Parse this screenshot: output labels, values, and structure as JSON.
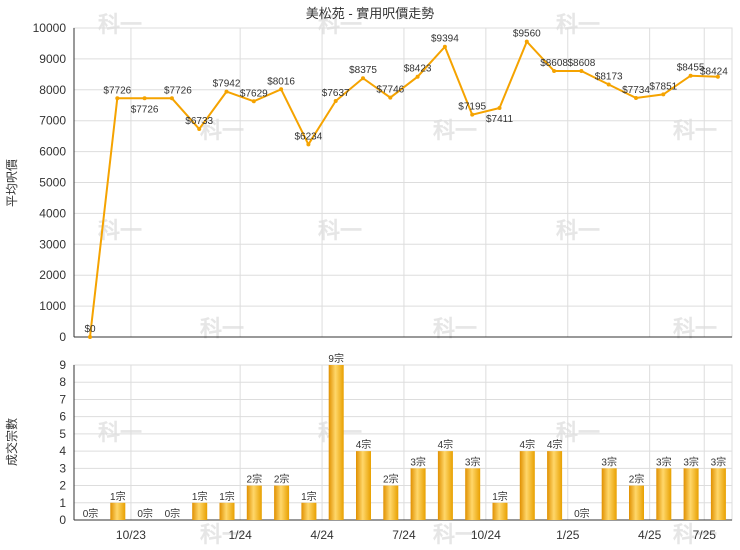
{
  "chart_data": [
    {
      "type": "line",
      "title": "美松苑 - 實用呎價走勢",
      "ylabel": "平均呎價",
      "ylim": [
        0,
        10000
      ],
      "yticks": [
        0,
        1000,
        2000,
        3000,
        4000,
        5000,
        6000,
        7000,
        8000,
        9000,
        10000
      ],
      "x_tick_labels": [
        "10/23",
        "1/24",
        "4/24",
        "7/24",
        "10/24",
        "1/25",
        "4/25",
        "7/25"
      ],
      "grid": true,
      "color": "#f5a300",
      "values": [
        0,
        7726,
        7726,
        7726,
        6733,
        7942,
        7629,
        8016,
        6234,
        7637,
        8375,
        7746,
        8423,
        9394,
        7195,
        7411,
        9560,
        8608,
        8608,
        8173,
        7734,
        7851,
        8455,
        8424
      ],
      "labels": [
        "$0",
        "$7726",
        "$7726",
        "$7726",
        "$6733",
        "$7942",
        "$7629",
        "$8016",
        "$6234",
        "$7637",
        "$8375",
        "$7746",
        "$8423",
        "$9394",
        "$7195",
        "$7411",
        "$9560",
        "$8608",
        "$8608",
        "$8173",
        "$7734",
        "$7851",
        "$8455",
        "$8424"
      ]
    },
    {
      "type": "bar",
      "ylabel": "成交宗數",
      "ylim": [
        0,
        9
      ],
      "yticks": [
        0,
        1,
        2,
        3,
        4,
        5,
        6,
        7,
        8,
        9
      ],
      "x_tick_labels": [
        "10/23",
        "1/24",
        "4/24",
        "7/24",
        "10/24",
        "1/25",
        "4/25",
        "7/25"
      ],
      "grid": true,
      "color": "#f5a300",
      "values": [
        0,
        1,
        0,
        0,
        1,
        1,
        2,
        2,
        1,
        9,
        4,
        2,
        3,
        4,
        3,
        1,
        4,
        4,
        0,
        3,
        2,
        3,
        3,
        3
      ],
      "labels": [
        "0宗",
        "1宗",
        "0宗",
        "0宗",
        "1宗",
        "1宗",
        "2宗",
        "2宗",
        "1宗",
        "9宗",
        "4宗",
        "2宗",
        "3宗",
        "4宗",
        "3宗",
        "1宗",
        "4宗",
        "4宗",
        "0宗",
        "3宗",
        "2宗",
        "3宗",
        "3宗",
        "3宗"
      ]
    }
  ],
  "watermark": "科一"
}
